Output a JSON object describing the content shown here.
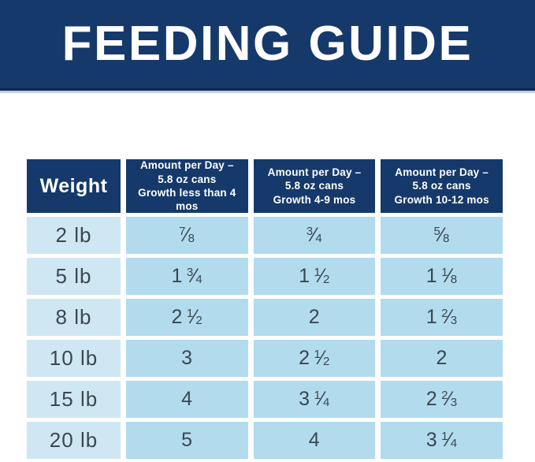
{
  "banner": {
    "title": "FEEDING GUIDE"
  },
  "table": {
    "columns": [
      {
        "name": "col-header-weight",
        "kind": "weight",
        "lines": [
          "Weight"
        ]
      },
      {
        "name": "col-header-growth-under-4mos",
        "kind": "amount",
        "lines": [
          "Amount per Day –",
          "5.8 oz cans",
          "Growth less than 4 mos"
        ]
      },
      {
        "name": "col-header-growth-4-9mos",
        "kind": "amount",
        "lines": [
          "Amount per Day –",
          "5.8 oz cans",
          "Growth 4-9 mos"
        ]
      },
      {
        "name": "col-header-growth-10-12mos",
        "kind": "amount",
        "lines": [
          "Amount per Day –",
          "5.8 oz cans",
          "Growth 10-12 mos"
        ]
      }
    ],
    "rows": [
      {
        "weight": "2 lb",
        "amounts": [
          "7/8",
          "3/4",
          "5/8"
        ]
      },
      {
        "weight": "5 lb",
        "amounts": [
          "1 3/4",
          "1 1/2",
          "1 1/8"
        ]
      },
      {
        "weight": "8 lb",
        "amounts": [
          "2 1/2",
          "2",
          "1 2/3"
        ]
      },
      {
        "weight": "10 lb",
        "amounts": [
          "3",
          "2 1/2",
          "2"
        ]
      },
      {
        "weight": "15 lb",
        "amounts": [
          "4",
          "3 1/4",
          "2 2/3"
        ]
      },
      {
        "weight": "20 lb",
        "amounts": [
          "5",
          "4",
          "3 1/4"
        ]
      }
    ]
  },
  "chart_data": {
    "type": "table",
    "title": "FEEDING GUIDE",
    "columns": [
      "Weight",
      "Amount per Day – 5.8 oz cans Growth less than 4 mos",
      "Amount per Day – 5.8 oz cans Growth 4-9 mos",
      "Amount per Day – 5.8 oz cans Growth 10-12 mos"
    ],
    "rows": [
      [
        "2 lb",
        "7/8",
        "3/4",
        "5/8"
      ],
      [
        "5 lb",
        "1 3/4",
        "1 1/2",
        "1 1/8"
      ],
      [
        "8 lb",
        "2 1/2",
        "2",
        "1 2/3"
      ],
      [
        "10 lb",
        "3",
        "2 1/2",
        "2"
      ],
      [
        "15 lb",
        "4",
        "3 1/4",
        "2 2/3"
      ],
      [
        "20 lb",
        "5",
        "4",
        "3 1/4"
      ]
    ],
    "weights_lb": [
      2,
      5,
      8,
      10,
      15,
      20
    ],
    "cans_per_day_decimal": {
      "growth_less_than_4_mos": [
        0.875,
        1.75,
        2.5,
        3,
        4,
        5
      ],
      "growth_4_9_mos": [
        0.75,
        1.5,
        2,
        2.5,
        3.25,
        4
      ],
      "growth_10_12_mos": [
        0.625,
        1.125,
        1.667,
        2,
        2.667,
        3.25
      ]
    },
    "can_size": "5.8 oz"
  },
  "colors": {
    "navy": "#16396b",
    "banner_border_dark": "#0c2a52",
    "banner_border_light": "#c2d0de",
    "weight_cell_bg": "#cfe7f3",
    "amount_cell_bg": "#b2dbee",
    "data_text": "#3a4750",
    "header_text": "#ffffff",
    "page_bg": "#ffffff"
  }
}
